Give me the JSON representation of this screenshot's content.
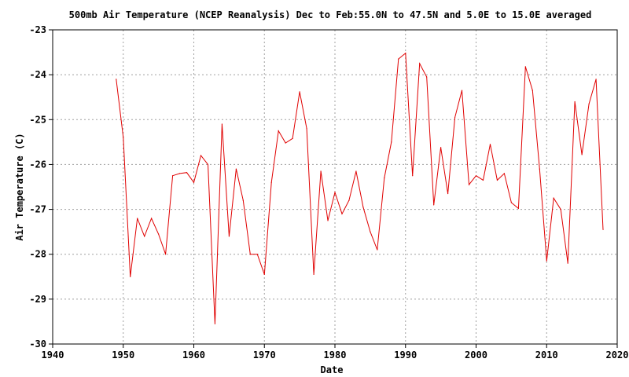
{
  "chart_data": {
    "type": "line",
    "title": "500mb Air Temperature (NCEP Reanalysis) Dec to Feb:55.0N to 47.5N and 5.0E to 15.0E averaged",
    "xlabel": "Date",
    "ylabel": "Air Temperature (C)",
    "xlim": [
      1940,
      2020
    ],
    "ylim": [
      -30,
      -23
    ],
    "x_ticks": [
      1940,
      1950,
      1960,
      1970,
      1980,
      1990,
      2000,
      2010,
      2020
    ],
    "y_ticks": [
      -30,
      -29,
      -28,
      -27,
      -26,
      -25,
      -24,
      -23
    ],
    "x_tick_labels": [
      "1940",
      "1950",
      "1960",
      "1970",
      "1980",
      "1990",
      "2000",
      "2010",
      "2020"
    ],
    "y_tick_labels": [
      "-30",
      "-29",
      "-28",
      "-27",
      "-26",
      "-25",
      "-24",
      "-23"
    ],
    "grid": true,
    "color": "#e00000",
    "series": [
      {
        "name": "Air Temperature",
        "x": [
          1949,
          1950,
          1951,
          1952,
          1953,
          1954,
          1955,
          1956,
          1957,
          1958,
          1959,
          1960,
          1961,
          1962,
          1963,
          1964,
          1965,
          1966,
          1967,
          1968,
          1969,
          1970,
          1971,
          1972,
          1973,
          1974,
          1975,
          1976,
          1977,
          1978,
          1979,
          1980,
          1981,
          1982,
          1983,
          1984,
          1985,
          1986,
          1987,
          1988,
          1989,
          1990,
          1991,
          1992,
          1993,
          1994,
          1995,
          1996,
          1997,
          1998,
          1999,
          2000,
          2001,
          2002,
          2003,
          2004,
          2005,
          2006,
          2007,
          2008,
          2009,
          2010,
          2011,
          2012,
          2013,
          2014,
          2015,
          2016,
          2017,
          2018
        ],
        "values": [
          -24.1,
          -25.4,
          -28.5,
          -27.2,
          -27.6,
          -27.2,
          -27.55,
          -28.0,
          -26.25,
          -26.2,
          -26.18,
          -26.4,
          -25.8,
          -26.0,
          -29.55,
          -25.1,
          -27.6,
          -26.1,
          -26.8,
          -28.0,
          -28.0,
          -28.45,
          -26.4,
          -25.25,
          -25.52,
          -25.42,
          -24.38,
          -25.2,
          -28.45,
          -26.15,
          -27.25,
          -26.62,
          -27.1,
          -26.8,
          -26.15,
          -26.95,
          -27.5,
          -27.9,
          -26.3,
          -25.5,
          -23.65,
          -23.52,
          -26.25,
          -23.75,
          -24.05,
          -26.9,
          -25.62,
          -26.65,
          -24.95,
          -24.35,
          -26.45,
          -26.25,
          -26.35,
          -25.55,
          -26.35,
          -26.2,
          -26.85,
          -26.98,
          -23.82,
          -24.35,
          -26.1,
          -28.15,
          -26.75,
          -27.0,
          -28.2,
          -24.6,
          -25.78,
          -24.65,
          -24.1,
          -27.45
        ]
      }
    ]
  }
}
